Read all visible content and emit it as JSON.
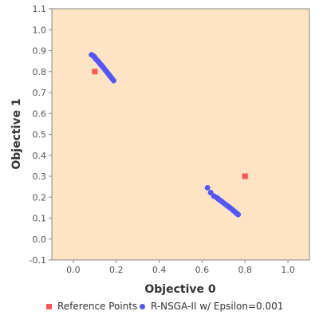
{
  "chart_data": {
    "type": "scatter",
    "title": "",
    "xlabel": "Objective 0",
    "ylabel": "Objective 1",
    "xlim": [
      -0.1,
      1.1
    ],
    "ylim": [
      -0.1,
      1.1
    ],
    "x_ticks": [
      "0.0",
      "0.2",
      "0.4",
      "0.6",
      "0.8",
      "1.0"
    ],
    "y_ticks": [
      "-0.1",
      "0.0",
      "0.1",
      "0.2",
      "0.3",
      "0.4",
      "0.5",
      "0.6",
      "0.7",
      "0.8",
      "0.9",
      "1.0",
      "1.1"
    ],
    "grid": false,
    "legend_position": "bottom",
    "plot_background": "#FFE4C4",
    "series": [
      {
        "name": "Reference Points",
        "marker": "square",
        "color": "#FF5555",
        "points": [
          [
            0.1,
            0.8
          ],
          [
            0.8,
            0.3
          ]
        ]
      },
      {
        "name": "R-NSGA-II w/ Epsilon=0.001",
        "marker": "circle",
        "color": "#5555FF",
        "points": [
          [
            0.085,
            0.88
          ],
          [
            0.093,
            0.875
          ],
          [
            0.1,
            0.868
          ],
          [
            0.105,
            0.86
          ],
          [
            0.112,
            0.853
          ],
          [
            0.118,
            0.846
          ],
          [
            0.124,
            0.838
          ],
          [
            0.13,
            0.831
          ],
          [
            0.137,
            0.823
          ],
          [
            0.143,
            0.815
          ],
          [
            0.149,
            0.807
          ],
          [
            0.155,
            0.8
          ],
          [
            0.161,
            0.792
          ],
          [
            0.167,
            0.784
          ],
          [
            0.173,
            0.776
          ],
          [
            0.18,
            0.767
          ],
          [
            0.188,
            0.757
          ],
          [
            0.625,
            0.245
          ],
          [
            0.64,
            0.222
          ],
          [
            0.655,
            0.205
          ],
          [
            0.668,
            0.198
          ],
          [
            0.675,
            0.192
          ],
          [
            0.684,
            0.185
          ],
          [
            0.693,
            0.178
          ],
          [
            0.702,
            0.171
          ],
          [
            0.711,
            0.164
          ],
          [
            0.72,
            0.157
          ],
          [
            0.729,
            0.15
          ],
          [
            0.738,
            0.143
          ],
          [
            0.746,
            0.136
          ],
          [
            0.754,
            0.129
          ],
          [
            0.762,
            0.122
          ],
          [
            0.768,
            0.117
          ]
        ]
      }
    ]
  }
}
